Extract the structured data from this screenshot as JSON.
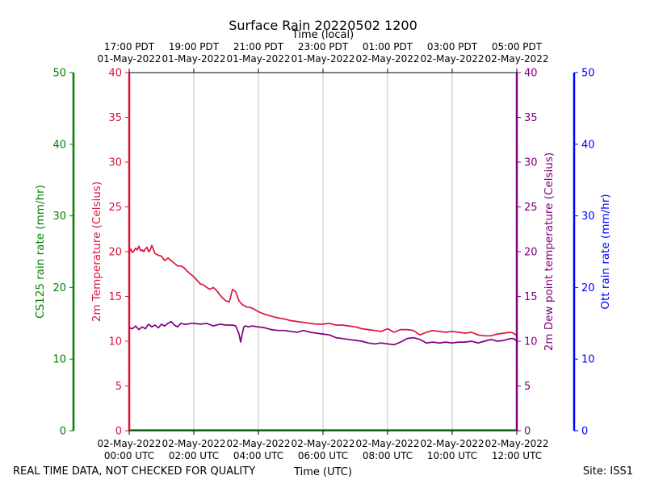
{
  "chart_data": {
    "type": "line",
    "title": "Surface Rain 20220502 1200",
    "top_xlabel": "Time (local)",
    "xlabel": "Time (UTC)",
    "xlim_hours": [
      0,
      12
    ],
    "bottom_ticks": [
      {
        "h": 0,
        "l1": "02-May-2022",
        "l2": "00:00 UTC"
      },
      {
        "h": 2,
        "l1": "02-May-2022",
        "l2": "02:00 UTC"
      },
      {
        "h": 4,
        "l1": "02-May-2022",
        "l2": "04:00 UTC"
      },
      {
        "h": 6,
        "l1": "02-May-2022",
        "l2": "06:00 UTC"
      },
      {
        "h": 8,
        "l1": "02-May-2022",
        "l2": "08:00 UTC"
      },
      {
        "h": 10,
        "l1": "02-May-2022",
        "l2": "10:00 UTC"
      },
      {
        "h": 12,
        "l1": "02-May-2022",
        "l2": "12:00 UTC"
      }
    ],
    "top_ticks": [
      {
        "h": 0,
        "l1": "17:00 PDT",
        "l2": "01-May-2022"
      },
      {
        "h": 2,
        "l1": "19:00 PDT",
        "l2": "01-May-2022"
      },
      {
        "h": 4,
        "l1": "21:00 PDT",
        "l2": "01-May-2022"
      },
      {
        "h": 6,
        "l1": "23:00 PDT",
        "l2": "01-May-2022"
      },
      {
        "h": 8,
        "l1": "01:00 PDT",
        "l2": "02-May-2022"
      },
      {
        "h": 10,
        "l1": "03:00 PDT",
        "l2": "02-May-2022"
      },
      {
        "h": 12,
        "l1": "05:00 PDT",
        "l2": "02-May-2022"
      }
    ],
    "grid": "vertical",
    "axes": {
      "cs125": {
        "label": "CS125 rain rate (mm/hr)",
        "range": [
          0,
          50
        ],
        "ticks": [
          "0",
          "10",
          "20",
          "30",
          "40",
          "50"
        ],
        "color": "#008000"
      },
      "temp": {
        "label": "2m Temperature (Celsius)",
        "range": [
          0,
          40
        ],
        "ticks": [
          "0",
          "5",
          "10",
          "15",
          "20",
          "25",
          "30",
          "35",
          "40"
        ],
        "color": "#dc143c"
      },
      "dew": {
        "label": "2m Dew point temperature (Celsius)",
        "range": [
          0,
          40
        ],
        "ticks": [
          "0",
          "5",
          "10",
          "15",
          "20",
          "25",
          "30",
          "35",
          "40"
        ],
        "color": "#800080"
      },
      "ott": {
        "label": "Ott rain rate (mm/hr)",
        "range": [
          0,
          50
        ],
        "ticks": [
          "0",
          "10",
          "20",
          "30",
          "40",
          "50"
        ],
        "color": "#0000ff"
      }
    },
    "series": [
      {
        "name": "2m Temperature",
        "color": "#dc143c",
        "x": [
          0,
          0.05,
          0.1,
          0.15,
          0.2,
          0.25,
          0.3,
          0.35,
          0.4,
          0.45,
          0.5,
          0.55,
          0.6,
          0.65,
          0.7,
          0.8,
          0.9,
          1.0,
          1.1,
          1.2,
          1.3,
          1.4,
          1.5,
          1.6,
          1.7,
          1.8,
          1.9,
          2.0,
          2.1,
          2.2,
          2.3,
          2.4,
          2.5,
          2.6,
          2.7,
          2.8,
          2.9,
          3.0,
          3.1,
          3.2,
          3.3,
          3.4,
          3.5,
          3.55,
          3.6,
          3.65,
          3.7,
          3.8,
          3.9,
          4.0,
          4.2,
          4.4,
          4.6,
          4.8,
          5.0,
          5.2,
          5.4,
          5.6,
          5.8,
          6.0,
          6.2,
          6.4,
          6.6,
          6.8,
          7.0,
          7.2,
          7.4,
          7.6,
          7.8,
          8.0,
          8.2,
          8.4,
          8.6,
          8.8,
          9.0,
          9.2,
          9.4,
          9.6,
          9.8,
          10.0,
          10.2,
          10.4,
          10.6,
          10.8,
          11.0,
          11.2,
          11.4,
          11.6,
          11.8,
          11.9,
          12.0
        ],
        "values": [
          19.9,
          20.3,
          19.9,
          20.1,
          20.4,
          20.2,
          20.6,
          20.1,
          20.2,
          20.0,
          20.3,
          20.5,
          20.0,
          20.2,
          20.7,
          19.8,
          19.6,
          19.5,
          19.0,
          19.3,
          19.0,
          18.7,
          18.4,
          18.4,
          18.2,
          17.8,
          17.5,
          17.2,
          16.8,
          16.4,
          16.3,
          16.0,
          15.8,
          16.0,
          15.7,
          15.2,
          14.8,
          14.5,
          14.4,
          15.8,
          15.5,
          14.5,
          14.1,
          14.0,
          13.9,
          13.8,
          13.8,
          13.7,
          13.5,
          13.3,
          13.0,
          12.8,
          12.6,
          12.5,
          12.3,
          12.2,
          12.1,
          12.0,
          11.9,
          11.9,
          12.0,
          11.8,
          11.8,
          11.7,
          11.6,
          11.4,
          11.3,
          11.2,
          11.1,
          11.4,
          11.0,
          11.3,
          11.3,
          11.2,
          10.7,
          11.0,
          11.2,
          11.1,
          11.0,
          11.1,
          11.0,
          10.9,
          11.0,
          10.7,
          10.6,
          10.6,
          10.8,
          10.9,
          11.0,
          10.9,
          10.6
        ]
      },
      {
        "name": "2m Dew point temperature",
        "color": "#800080",
        "x": [
          0,
          0.1,
          0.2,
          0.3,
          0.4,
          0.5,
          0.6,
          0.7,
          0.8,
          0.9,
          1.0,
          1.1,
          1.2,
          1.3,
          1.4,
          1.5,
          1.6,
          1.7,
          1.8,
          1.9,
          2.0,
          2.2,
          2.4,
          2.6,
          2.8,
          3.0,
          3.2,
          3.3,
          3.4,
          3.45,
          3.5,
          3.55,
          3.6,
          3.7,
          3.8,
          4.0,
          4.2,
          4.4,
          4.6,
          4.8,
          5.0,
          5.2,
          5.4,
          5.6,
          5.8,
          6.0,
          6.2,
          6.4,
          6.6,
          6.8,
          7.0,
          7.2,
          7.4,
          7.6,
          7.8,
          8.0,
          8.2,
          8.4,
          8.6,
          8.8,
          9.0,
          9.2,
          9.4,
          9.6,
          9.8,
          10.0,
          10.2,
          10.4,
          10.6,
          10.8,
          11.0,
          11.2,
          11.4,
          11.6,
          11.8,
          11.9,
          12.0
        ],
        "values": [
          11.5,
          11.4,
          11.7,
          11.3,
          11.6,
          11.4,
          11.9,
          11.6,
          11.8,
          11.5,
          11.9,
          11.7,
          12.0,
          12.2,
          11.8,
          11.6,
          12.0,
          11.9,
          11.9,
          12.0,
          12.0,
          11.9,
          12.0,
          11.7,
          11.9,
          11.8,
          11.8,
          11.7,
          10.8,
          9.9,
          10.8,
          11.6,
          11.7,
          11.6,
          11.7,
          11.6,
          11.5,
          11.3,
          11.2,
          11.2,
          11.1,
          11.0,
          11.2,
          11.0,
          10.9,
          10.8,
          10.7,
          10.4,
          10.3,
          10.2,
          10.1,
          10.0,
          9.8,
          9.7,
          9.8,
          9.7,
          9.6,
          9.9,
          10.3,
          10.4,
          10.2,
          9.8,
          9.9,
          9.8,
          9.9,
          9.8,
          9.9,
          9.9,
          10.0,
          9.8,
          10.0,
          10.2,
          10.0,
          10.1,
          10.3,
          10.3,
          10.0
        ]
      }
    ]
  },
  "footer": {
    "left_note": "REAL TIME DATA, NOT CHECKED FOR QUALITY",
    "site": "Site: ISS1"
  }
}
